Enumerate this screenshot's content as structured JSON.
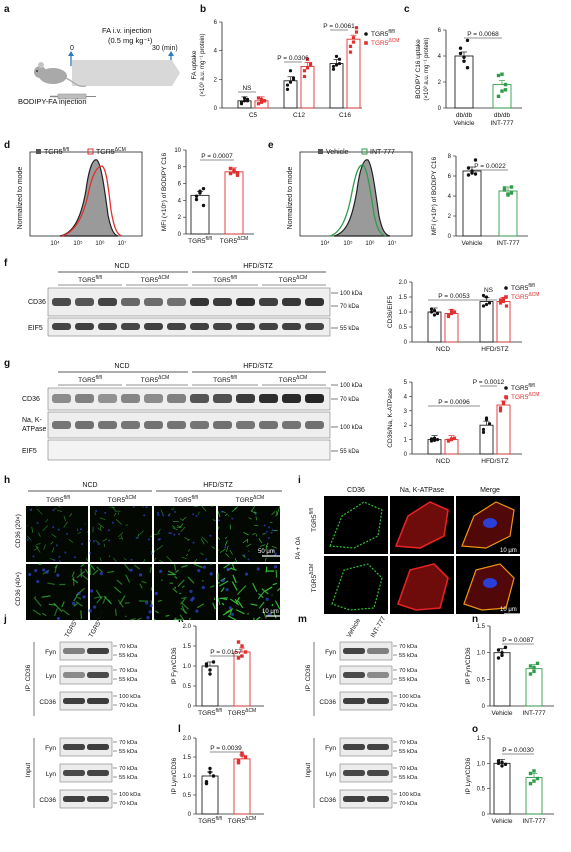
{
  "panels": {
    "a": "a",
    "b": "b",
    "c": "c",
    "d": "d",
    "e": "e",
    "f": "f",
    "g": "g",
    "h": "h",
    "i": "i",
    "j": "j",
    "k": "k",
    "l": "l",
    "m": "m",
    "n": "n",
    "o": "o"
  },
  "panel_a": {
    "injection_label": "FA i.v. injection",
    "dose": "(0.5 mg kg⁻¹)",
    "time_start": "0",
    "time_end": "30 (min)",
    "caption": "BODIPY-FA injection"
  },
  "legend_tgr5": {
    "fl": "TGR5",
    "fl_sup": "fl/fl",
    "cm": "TGR5",
    "cm_sup": "ΔCM"
  },
  "chart_data": [
    {
      "id": "b",
      "type": "bar",
      "ylabel": "FA uptake",
      "ylabel2": "(×10³ a.u. mg⁻¹ protein)",
      "ylim": [
        0,
        6
      ],
      "yticks": [
        "0",
        "2",
        "4",
        "6"
      ],
      "categories": [
        "C5",
        "C12",
        "C16"
      ],
      "series": [
        {
          "name": "TGR5 fl/fl",
          "color": "#222222",
          "values": [
            0.5,
            1.9,
            3.1
          ],
          "points": [
            [
              0.3,
              0.5,
              0.6,
              0.4,
              0.7,
              0.5
            ],
            [
              1.3,
              1.8,
              2.1,
              1.6,
              2.6,
              2.0
            ],
            [
              2.7,
              3.0,
              3.4,
              2.9,
              3.6,
              3.1
            ]
          ]
        },
        {
          "name": "TGR5 ΔCM",
          "color": "#e03030",
          "values": [
            0.5,
            2.9,
            4.8
          ],
          "points": [
            [
              0.3,
              0.6,
              0.5,
              0.7,
              0.4,
              0.5
            ],
            [
              2.2,
              2.8,
              3.1,
              2.6,
              3.4,
              3.0
            ],
            [
              3.9,
              4.6,
              5.6,
              4.3,
              4.9,
              5.3
            ]
          ]
        }
      ],
      "annotations": [
        "NS",
        "P = 0.0306",
        "P = 0.0061"
      ]
    },
    {
      "id": "c",
      "type": "bar",
      "ylabel": "BODIPY C16 uptake",
      "ylabel2": "(×10³ a.u. mg⁻¹ protein)",
      "ylim": [
        0,
        6
      ],
      "yticks": [
        "0",
        "2",
        "4",
        "6"
      ],
      "categories": [
        "db/db Vehicle",
        "db/db INT-777"
      ],
      "series": [
        {
          "values": [
            4.0,
            1.8
          ],
          "points": [
            [
              4.6,
              3.6,
              3.1,
              4.2,
              3.9,
              5.2
            ],
            [
              2.5,
              1.3,
              1.8,
              0.9,
              2.6,
              1.4
            ]
          ]
        }
      ],
      "colors": [
        "#222222",
        "#2e9c4a"
      ],
      "annotations": [
        "P = 0.0068"
      ]
    },
    {
      "id": "d",
      "type": "bar",
      "ylabel": "MFI (×10⁵) of BODIPY C16",
      "ylim": [
        0,
        10
      ],
      "yticks": [
        "0",
        "2",
        "4",
        "6",
        "8",
        "10"
      ],
      "categories": [
        "TGR5 fl/fl",
        "TGR5 ΔCM"
      ],
      "series": [
        {
          "values": [
            4.6,
            7.4
          ],
          "points": [
            [
              4.5,
              4.9,
              3.4,
              4.1,
              5.1,
              5.4
            ],
            [
              7.2,
              7.6,
              7.0,
              7.8,
              7.4,
              7.3
            ]
          ]
        }
      ],
      "colors": [
        "#222222",
        "#e03030"
      ],
      "annotations": [
        "P = 0.0007"
      ]
    },
    {
      "id": "e",
      "type": "bar",
      "ylabel": "MFI (×10⁵) of BODIPY C16",
      "ylim": [
        0,
        8
      ],
      "yticks": [
        "0",
        "2",
        "4",
        "6",
        "8"
      ],
      "categories": [
        "Vehicle",
        "INT-777"
      ],
      "series": [
        {
          "values": [
            6.5,
            4.5
          ],
          "points": [
            [
              6.8,
              6.3,
              7.6,
              6.1,
              6.5,
              6.2
            ],
            [
              4.6,
              4.2,
              4.3,
              4.8,
              4.1,
              4.9
            ]
          ]
        }
      ],
      "colors": [
        "#222222",
        "#2e9c4a"
      ],
      "annotations": [
        "P = 0.0022"
      ]
    },
    {
      "id": "f",
      "type": "bar",
      "ylabel": "CD36/EIF5",
      "ylim": [
        0,
        2.0
      ],
      "yticks": [
        "0",
        "0.5",
        "1.0",
        "1.5",
        "2.0"
      ],
      "categories": [
        "NCD",
        "HFD/STZ"
      ],
      "series": [
        {
          "name": "TGR5 fl/fl",
          "color": "#222222",
          "values": [
            1.0,
            1.35
          ],
          "points": [
            [
              1.0,
              1.05,
              0.95,
              1.1,
              0.9
            ],
            [
              1.2,
              1.5,
              1.3,
              1.55,
              1.25
            ]
          ]
        },
        {
          "name": "TGR5 ΔCM",
          "color": "#e03030",
          "values": [
            0.95,
            1.35
          ],
          "points": [
            [
              0.9,
              0.95,
              1.0,
              0.85,
              1.05
            ],
            [
              1.3,
              1.45,
              1.2,
              1.4,
              1.35
            ]
          ]
        }
      ],
      "annotations": [
        "P = 0.0053",
        "NS"
      ]
    },
    {
      "id": "g",
      "type": "bar",
      "ylabel": "CD36/Na, K-ATPase",
      "ylim": [
        0,
        5
      ],
      "yticks": [
        "0",
        "1",
        "2",
        "3",
        "4",
        "5"
      ],
      "categories": [
        "NCD",
        "HFD/STZ"
      ],
      "series": [
        {
          "name": "TGR5 fl/fl",
          "color": "#222222",
          "values": [
            1.0,
            2.0
          ],
          "points": [
            [
              0.9,
              1.1,
              1.0,
              1.05,
              0.95
            ],
            [
              1.5,
              2.4,
              2.1,
              1.7,
              2.5
            ]
          ]
        },
        {
          "name": "TGR5 ΔCM",
          "color": "#e03030",
          "values": [
            1.0,
            3.4
          ],
          "points": [
            [
              0.95,
              1.05,
              1.1,
              0.9,
              1.0
            ],
            [
              3.0,
              3.6,
              3.9,
              3.2,
              3.5
            ]
          ]
        }
      ],
      "annotations": [
        "P = 0.0096",
        "P = 0.0012"
      ]
    },
    {
      "id": "k",
      "type": "bar",
      "ylabel": "IP Fyn/CD36",
      "ylim": [
        0,
        2.0
      ],
      "yticks": [
        "0",
        "0.5",
        "1.0",
        "1.5",
        "2.0"
      ],
      "categories": [
        "TGR5 fl/fl",
        "TGR5 ΔCM"
      ],
      "series": [
        {
          "values": [
            1.0,
            1.35
          ],
          "points": [
            [
              1.0,
              0.8,
              1.1,
              1.05,
              0.9
            ],
            [
              1.2,
              1.5,
              1.35,
              1.6,
              1.25
            ]
          ]
        }
      ],
      "colors": [
        "#222222",
        "#e03030"
      ],
      "annotations": [
        "P = 0.0157"
      ]
    },
    {
      "id": "l",
      "type": "bar",
      "ylabel": "IP Lyn/CD36",
      "ylim": [
        0,
        2.0
      ],
      "yticks": [
        "0",
        "0.5",
        "1.0",
        "1.5",
        "2.0"
      ],
      "categories": [
        "TGR5 fl/fl",
        "TGR5 ΔCM"
      ],
      "series": [
        {
          "values": [
            1.0,
            1.45
          ],
          "points": [
            [
              0.8,
              1.1,
              1.0,
              0.85,
              1.2
            ],
            [
              1.4,
              1.55,
              1.5,
              1.35,
              1.6
            ]
          ]
        }
      ],
      "colors": [
        "#222222",
        "#e03030"
      ],
      "annotations": [
        "P = 0.0039"
      ]
    },
    {
      "id": "n",
      "type": "bar",
      "ylabel": "IP Fyn/CD36",
      "ylim": [
        0,
        1.5
      ],
      "yticks": [
        "0",
        "0.5",
        "1.0",
        "1.5"
      ],
      "categories": [
        "Vehicle",
        "INT-777"
      ],
      "series": [
        {
          "values": [
            1.0,
            0.7
          ],
          "points": [
            [
              1.05,
              0.95,
              1.1,
              0.9,
              1.0
            ],
            [
              0.75,
              0.65,
              0.8,
              0.6,
              0.72
            ]
          ]
        }
      ],
      "colors": [
        "#222222",
        "#2e9c4a"
      ],
      "annotations": [
        "P = 0.0087"
      ]
    },
    {
      "id": "o",
      "type": "bar",
      "ylabel": "IP Lyn/CD36",
      "ylim": [
        0,
        1.5
      ],
      "yticks": [
        "0",
        "0.5",
        "1.0",
        "1.5"
      ],
      "categories": [
        "Vehicle",
        "INT-777"
      ],
      "series": [
        {
          "values": [
            1.0,
            0.72
          ],
          "points": [
            [
              1.0,
              1.02,
              0.98,
              1.05,
              0.95
            ],
            [
              0.8,
              0.65,
              0.7,
              0.6,
              0.85
            ]
          ]
        }
      ],
      "colors": [
        "#222222",
        "#2e9c4a"
      ],
      "annotations": [
        "P = 0.0030"
      ]
    }
  ],
  "flow": {
    "d_ylabel": "Normalized to mode",
    "d_legend": [
      "TGR5",
      "fl/fl",
      "TGR5",
      "ΔCM"
    ],
    "e_ylabel": "Normalized to mode",
    "e_legend": [
      "Vehicle",
      "INT-777"
    ],
    "xticks": [
      "10⁴",
      "10⁵",
      "10⁶",
      "10⁷"
    ]
  },
  "blot_f": {
    "groups": [
      "NCD",
      "HFD/STZ"
    ],
    "genotypes": [
      "TGR5",
      "fl/fl",
      "TGR5",
      "ΔCM",
      "TGR5",
      "fl/fl",
      "TGR5",
      "ΔCM"
    ],
    "rows": [
      "CD36",
      "EIF5"
    ],
    "markers": [
      "100 kDa",
      "70 kDa",
      "55 kDa"
    ]
  },
  "blot_g": {
    "groups": [
      "NCD",
      "HFD/STZ"
    ],
    "genotypes": [
      "TGR5",
      "fl/fl",
      "TGR5",
      "ΔCM",
      "TGR5",
      "fl/fl",
      "TGR5",
      "ΔCM"
    ],
    "rows": [
      "CD36",
      "Na, K-",
      "ATPase",
      "EIF5"
    ],
    "markers": [
      "100 kDa",
      "70 kDa",
      "100 kDa",
      "55 kDa"
    ]
  },
  "panel_h": {
    "groups": [
      "NCD",
      "HFD/STZ"
    ],
    "cols": [
      "TGR5",
      "fl/fl",
      "TGR5",
      "ΔCM",
      "TGR5",
      "fl/fl",
      "TGR5",
      "ΔCM"
    ],
    "rows": [
      "CD36 (20×)",
      "CD36 (40×)"
    ],
    "scale1": "50 μm",
    "scale2": "10 μm"
  },
  "panel_i": {
    "cols": [
      "CD36",
      "Na, K-ATPase",
      "Merge"
    ],
    "side": "PA + OA",
    "rows": [
      "TGR5",
      "fl/fl",
      "TGR5",
      "ΔCM"
    ],
    "scale": "10 μm"
  },
  "blot_j": {
    "lanes": [
      "TGR5",
      "fl/fl",
      "TGR5",
      "ΔCM"
    ],
    "ip_label": "IP: CD36",
    "input_label": "Input",
    "rows": [
      "Fyn",
      "Lyn",
      "CD36",
      "Fyn",
      "Lyn",
      "CD36"
    ],
    "markers": [
      [
        "70 kDa",
        "55 kDa"
      ],
      [
        "70 kDa",
        "55 kDa"
      ],
      [
        "100 kDa",
        "70 kDa"
      ],
      [
        "70 kDa",
        "55 kDa"
      ],
      [
        "70 kDa",
        "55 kDa"
      ],
      [
        "100 kDa",
        "70 kDa"
      ]
    ]
  },
  "blot_m": {
    "lanes": [
      "Vehicle",
      "INT-777"
    ],
    "ip_label": "IP: CD36",
    "input_label": "Input",
    "rows": [
      "Fyn",
      "Lyn",
      "CD36",
      "Fyn",
      "Lyn",
      "CD36"
    ],
    "markers": [
      [
        "70 kDa",
        "55 kDa"
      ],
      [
        "70 kDa",
        "55 kDa"
      ],
      [
        "100 kDa",
        "70 kDa"
      ],
      [
        "70 kDa",
        "55 kDa"
      ],
      [
        "70 kDa",
        "55 kDa"
      ],
      [
        "100 kDa",
        "70 kDa"
      ]
    ]
  }
}
